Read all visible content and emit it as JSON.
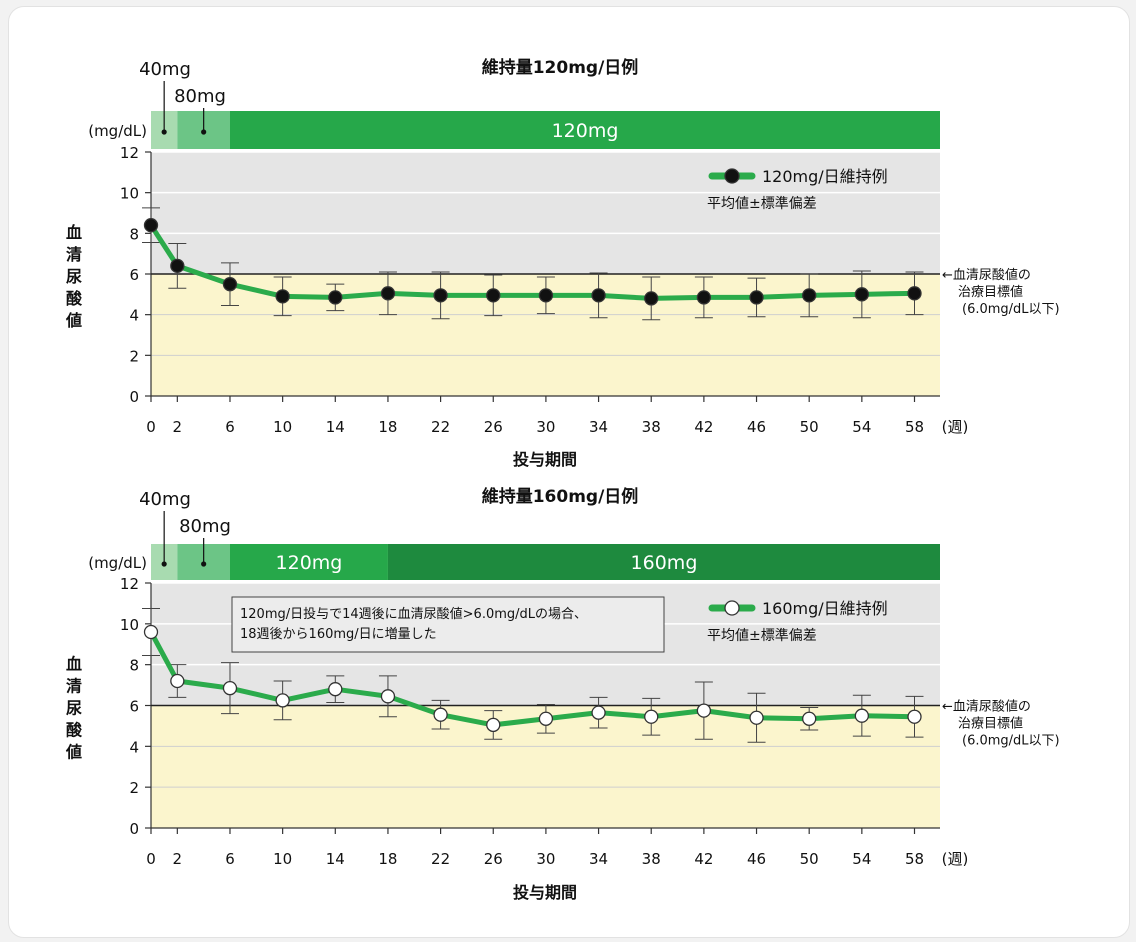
{
  "chart_data": [
    {
      "type": "line",
      "title": "維持量120mg/日例",
      "ylabel": "血清尿酸値",
      "y_unit": "(mg/dL)",
      "xlabel": "投与期間",
      "x_unit": "(週)",
      "ylim": [
        0,
        12
      ],
      "y_ticks": [
        0,
        2,
        4,
        6,
        8,
        10,
        12
      ],
      "x_ticks": [
        0,
        2,
        6,
        10,
        14,
        18,
        22,
        26,
        30,
        34,
        38,
        42,
        46,
        50,
        54,
        58
      ],
      "grid": true,
      "marker": "filled",
      "legend": "top-right",
      "series": [
        {
          "name": "120mg/日維持例",
          "x": [
            0,
            2,
            6,
            10,
            14,
            18,
            22,
            26,
            30,
            34,
            38,
            42,
            46,
            50,
            54,
            58
          ],
          "values": [
            8.4,
            6.4,
            5.5,
            4.9,
            4.85,
            5.05,
            4.95,
            4.95,
            4.95,
            4.95,
            4.8,
            4.85,
            4.85,
            4.95,
            5.0,
            5.05
          ],
          "sd": [
            0.85,
            1.1,
            1.05,
            0.95,
            0.65,
            1.05,
            1.15,
            1.0,
            0.9,
            1.1,
            1.05,
            1.0,
            0.95,
            1.05,
            1.15,
            1.05
          ]
        }
      ],
      "legend_note": "平均値±標準偏差",
      "target_line": {
        "value": 6.0,
        "label_lines": [
          "←血清尿酸値の",
          "治療目標値",
          "(6.0mg/dL以下)"
        ]
      },
      "dose_bars": [
        {
          "label": "",
          "from": 0,
          "to": 2,
          "color": "#a8dbb0"
        },
        {
          "label": "",
          "from": 2,
          "to": 6,
          "color": "#6cc586"
        },
        {
          "label": "120mg",
          "from": 6,
          "to": 58,
          "color": "#26a84a"
        }
      ],
      "dose_callouts": [
        {
          "label": "40mg",
          "week": 1
        },
        {
          "label": "80mg",
          "week": 4
        }
      ]
    },
    {
      "type": "line",
      "title": "維持量160mg/日例",
      "ylabel": "血清尿酸値",
      "y_unit": "(mg/dL)",
      "xlabel": "投与期間",
      "x_unit": "(週)",
      "ylim": [
        0,
        12
      ],
      "y_ticks": [
        0,
        2,
        4,
        6,
        8,
        10,
        12
      ],
      "x_ticks": [
        0,
        2,
        6,
        10,
        14,
        18,
        22,
        26,
        30,
        34,
        38,
        42,
        46,
        50,
        54,
        58
      ],
      "grid": true,
      "marker": "open",
      "legend": "top-right",
      "series": [
        {
          "name": "160mg/日維持例",
          "x": [
            0,
            2,
            6,
            10,
            14,
            18,
            22,
            26,
            30,
            34,
            38,
            42,
            46,
            50,
            54,
            58
          ],
          "values": [
            9.6,
            7.2,
            6.85,
            6.25,
            6.8,
            6.45,
            5.55,
            5.05,
            5.35,
            5.65,
            5.45,
            5.75,
            5.4,
            5.35,
            5.5,
            5.45
          ],
          "sd": [
            1.15,
            0.8,
            1.25,
            0.95,
            0.65,
            1.0,
            0.7,
            0.7,
            0.7,
            0.75,
            0.9,
            1.4,
            1.2,
            0.55,
            1.0,
            1.0
          ]
        }
      ],
      "legend_note": "平均値±標準偏差",
      "note": [
        "120mg/日投与で14週後に血清尿酸値>6.0mg/dLの場合、",
        "18週後から160mg/日に増量した"
      ],
      "target_line": {
        "value": 6.0,
        "label_lines": [
          "←血清尿酸値の",
          "治療目標値",
          "(6.0mg/dL以下)"
        ]
      },
      "dose_bars": [
        {
          "label": "",
          "from": 0,
          "to": 2,
          "color": "#a8dbb0"
        },
        {
          "label": "",
          "from": 2,
          "to": 6,
          "color": "#6cc586"
        },
        {
          "label": "120mg",
          "from": 6,
          "to": 18,
          "color": "#26a84a"
        },
        {
          "label": "160mg",
          "from": 18,
          "to": 58,
          "color": "#1e8a3e"
        }
      ],
      "dose_callouts": [
        {
          "label": "40mg",
          "week": 1
        },
        {
          "label": "80mg",
          "week": 4
        }
      ]
    }
  ],
  "colors": {
    "line": "#2bab4b",
    "band_upper": "#e5e5e5",
    "band_lower": "#fbf5cd",
    "gridline": "#ffffff",
    "lower_gridline": "#cfcfcf",
    "target_line": "#222222"
  }
}
